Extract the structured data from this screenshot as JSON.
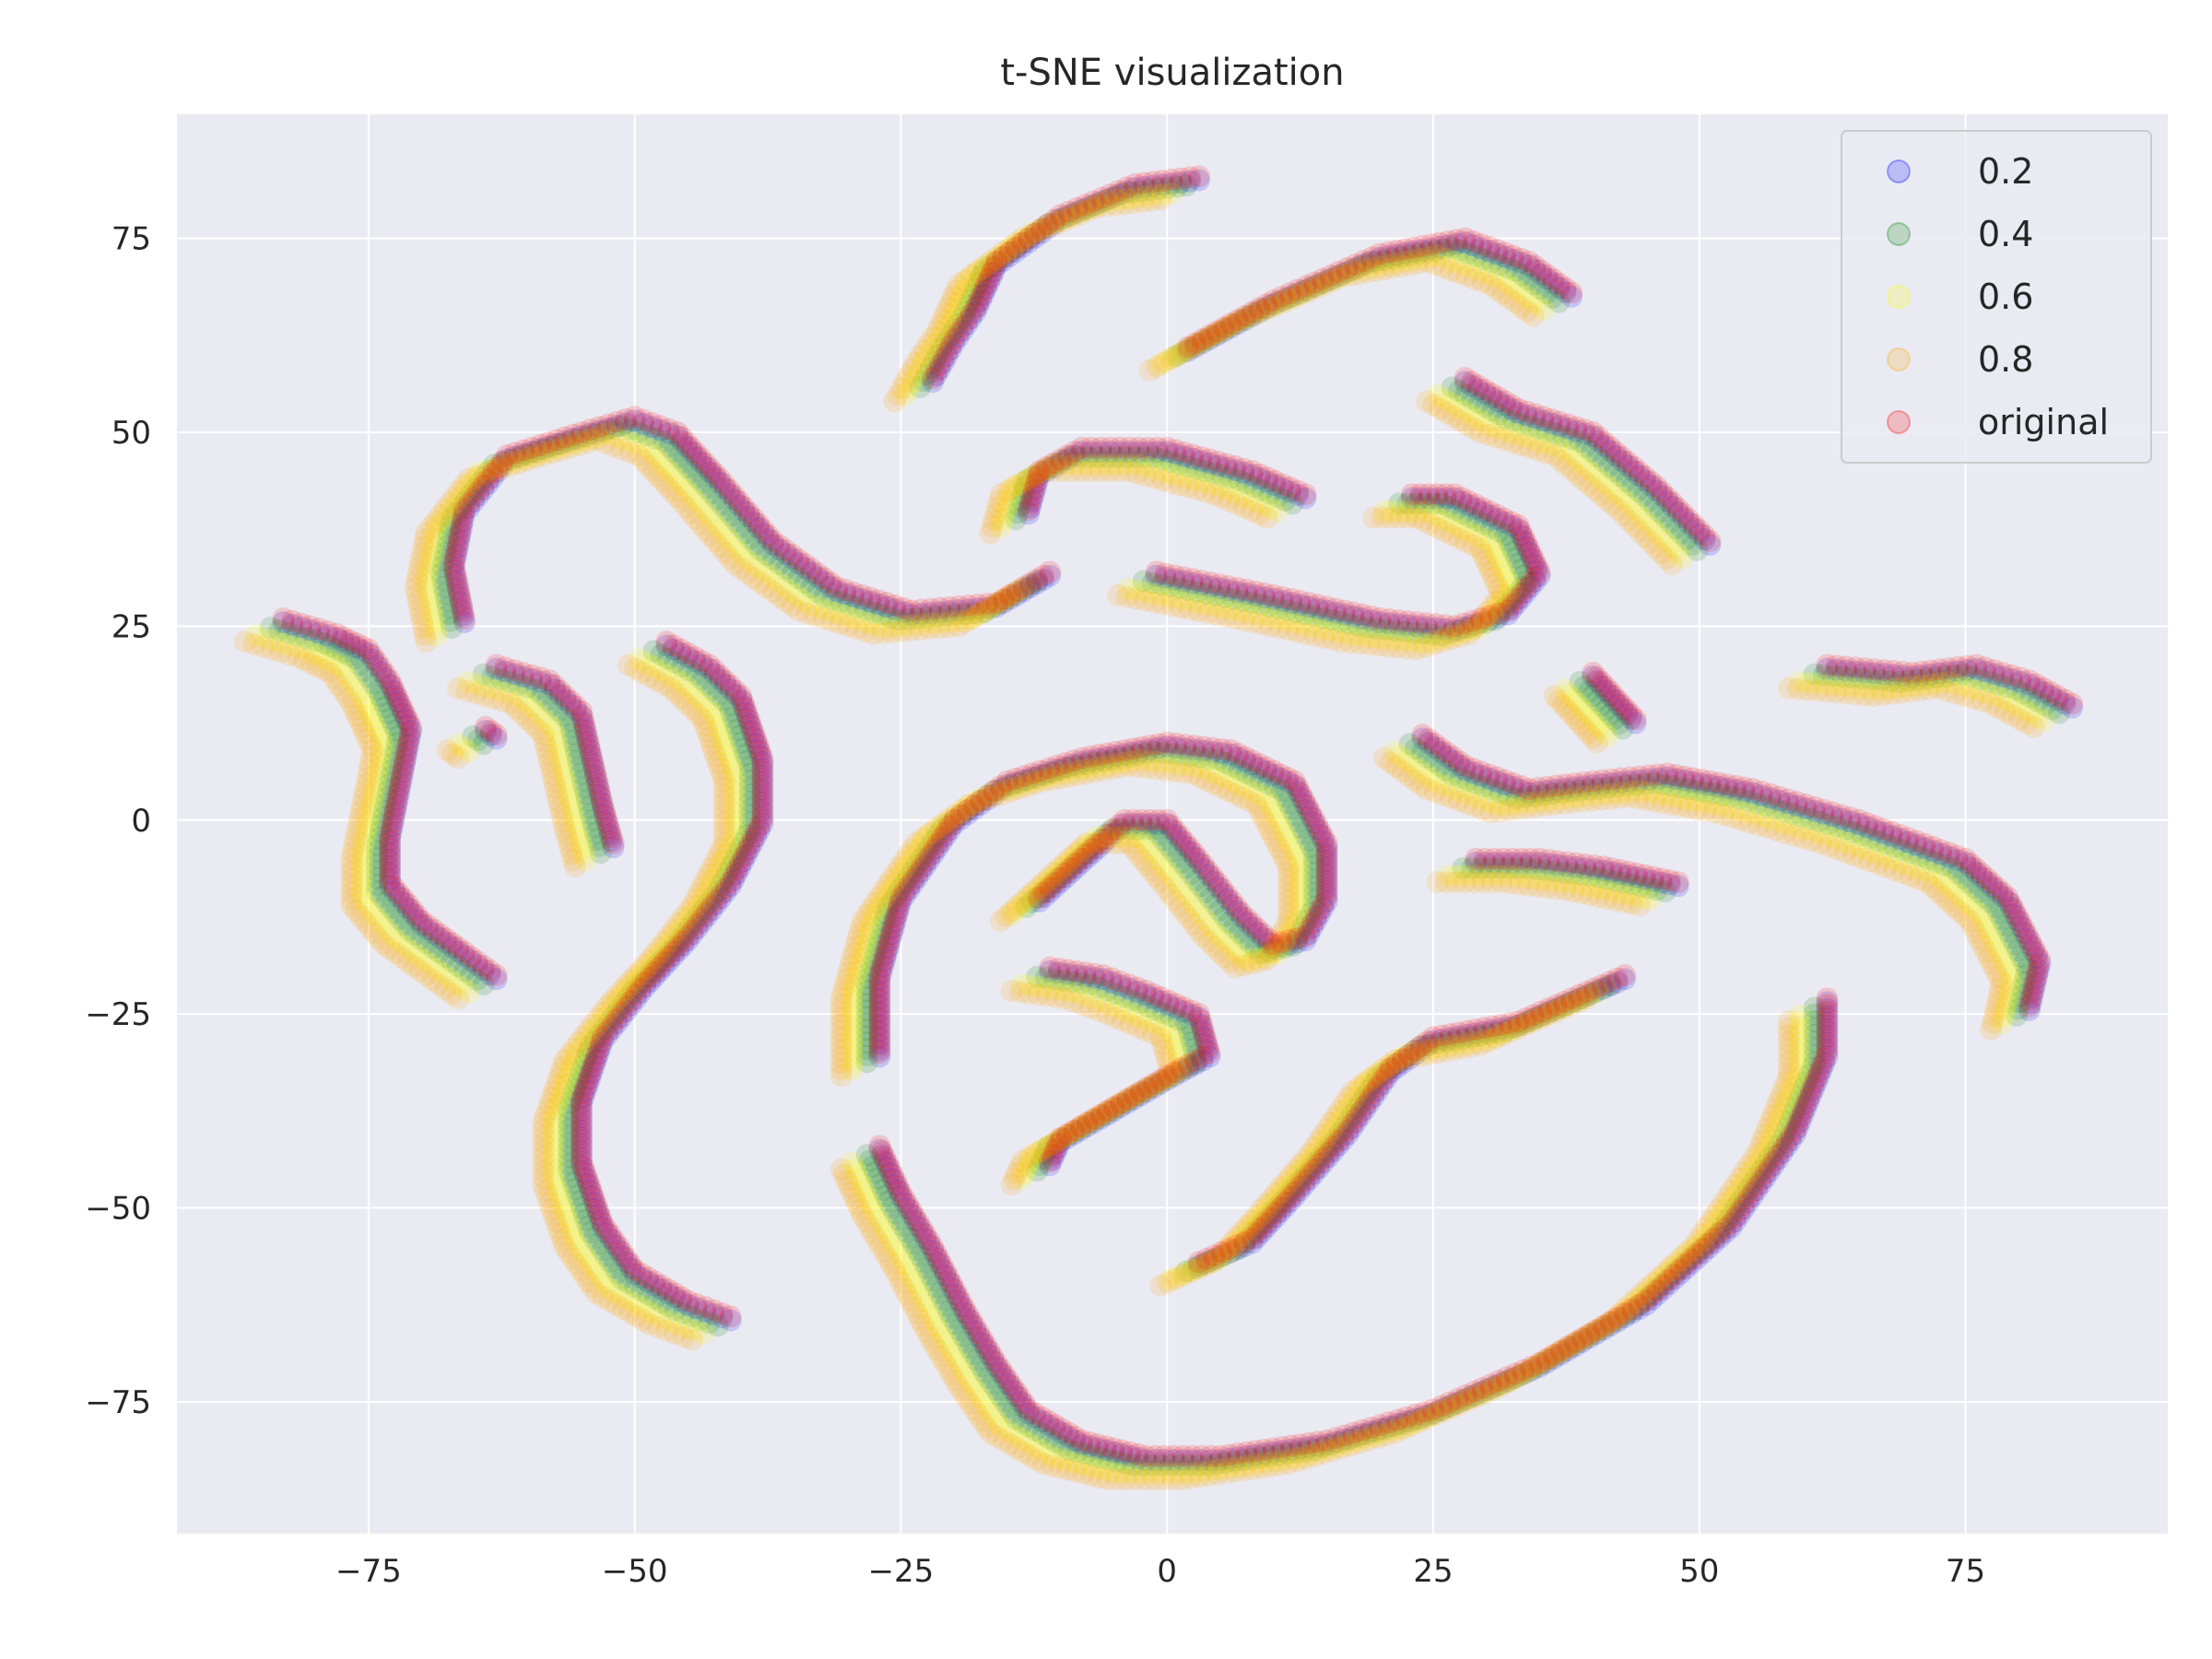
{
  "chart_data": {
    "type": "scatter",
    "title": "t-SNE visualization",
    "xlabel": "",
    "ylabel": "",
    "xlim": [
      -93,
      94
    ],
    "ylim": [
      -92,
      91
    ],
    "xticks": [
      -75,
      -50,
      -25,
      0,
      25,
      50,
      75
    ],
    "yticks": [
      -75,
      -50,
      -25,
      0,
      25,
      50,
      75
    ],
    "grid": true,
    "legend_position": "top-right",
    "background": "#eaeaf2",
    "series": [
      {
        "name": "0.2",
        "color": "#0000ff",
        "offset": [
          0,
          -0.5
        ]
      },
      {
        "name": "0.4",
        "color": "#008000",
        "offset": [
          -1.2,
          -1.2
        ]
      },
      {
        "name": "0.6",
        "color": "#ffff00",
        "offset": [
          -2.6,
          -2.2
        ]
      },
      {
        "name": "0.8",
        "color": "#ffa500",
        "offset": [
          -3.6,
          -3.0
        ]
      },
      {
        "name": "original",
        "color": "#ff0000",
        "offset": [
          0,
          0
        ]
      }
    ],
    "curves": [
      [
        [
          -83,
          26
        ],
        [
          -78,
          24
        ],
        [
          -75,
          22
        ],
        [
          -73,
          18
        ],
        [
          -71,
          12
        ],
        [
          -72,
          5
        ],
        [
          -73,
          -2
        ],
        [
          -73,
          -8
        ],
        [
          -70,
          -13
        ],
        [
          -66,
          -17
        ],
        [
          -63,
          -20
        ]
      ],
      [
        [
          -63,
          20
        ],
        [
          -58,
          18
        ],
        [
          -55,
          14
        ],
        [
          -54,
          8
        ],
        [
          -53,
          2
        ],
        [
          -52,
          -3
        ]
      ],
      [
        [
          -64,
          12
        ],
        [
          -63,
          11
        ]
      ],
      [
        [
          -47,
          23
        ],
        [
          -43,
          20
        ],
        [
          -40,
          16
        ],
        [
          -38,
          8
        ],
        [
          -38,
          0
        ],
        [
          -41,
          -8
        ],
        [
          -45,
          -15
        ],
        [
          -49,
          -21
        ],
        [
          -53,
          -28
        ],
        [
          -55,
          -36
        ],
        [
          -55,
          -44
        ],
        [
          -53,
          -52
        ],
        [
          -50,
          -58
        ],
        [
          -45,
          -62
        ],
        [
          -41,
          -64
        ]
      ],
      [
        [
          -66,
          26
        ],
        [
          -67,
          33
        ],
        [
          -66,
          40
        ],
        [
          -62,
          47
        ],
        [
          -55,
          50
        ],
        [
          -50,
          52
        ],
        [
          -46,
          50
        ],
        [
          -42,
          44
        ],
        [
          -37,
          36
        ],
        [
          -31,
          30
        ],
        [
          -24,
          27
        ],
        [
          -16,
          28
        ],
        [
          -11,
          32
        ]
      ],
      [
        [
          -22,
          57
        ],
        [
          -20,
          62
        ],
        [
          -18,
          66
        ],
        [
          -16,
          72
        ],
        [
          -10,
          78
        ],
        [
          -3,
          82
        ],
        [
          3,
          83
        ]
      ],
      [
        [
          -13,
          40
        ],
        [
          -12,
          45
        ],
        [
          -8,
          48
        ],
        [
          0,
          48
        ],
        [
          8,
          45
        ],
        [
          13,
          42
        ]
      ],
      [
        [
          2,
          61
        ],
        [
          10,
          67
        ],
        [
          20,
          73
        ],
        [
          28,
          75
        ],
        [
          34,
          72
        ],
        [
          38,
          68
        ]
      ],
      [
        [
          28,
          57
        ],
        [
          33,
          53
        ],
        [
          40,
          50
        ],
        [
          46,
          43
        ],
        [
          51,
          36
        ]
      ],
      [
        [
          -1,
          32
        ],
        [
          10,
          29
        ],
        [
          20,
          26
        ],
        [
          27,
          25
        ],
        [
          32,
          27
        ],
        [
          35,
          32
        ],
        [
          33,
          38
        ],
        [
          27,
          42
        ],
        [
          23,
          42
        ]
      ],
      [
        [
          40,
          19
        ],
        [
          42,
          16
        ],
        [
          44,
          13
        ]
      ],
      [
        [
          62,
          20
        ],
        [
          70,
          19
        ],
        [
          76,
          20
        ],
        [
          81,
          18
        ],
        [
          85,
          15
        ]
      ],
      [
        [
          24,
          11
        ],
        [
          28,
          7
        ],
        [
          34,
          4
        ],
        [
          40,
          5
        ],
        [
          47,
          6
        ],
        [
          55,
          4
        ],
        [
          65,
          0
        ],
        [
          75,
          -5
        ],
        [
          79,
          -10
        ],
        [
          82,
          -18
        ],
        [
          81,
          -24
        ]
      ],
      [
        [
          -27,
          -30
        ],
        [
          -27,
          -20
        ],
        [
          -25,
          -10
        ],
        [
          -20,
          0
        ],
        [
          -15,
          5
        ],
        [
          -8,
          8
        ],
        [
          0,
          10
        ],
        [
          6,
          9
        ],
        [
          12,
          5
        ],
        [
          15,
          -3
        ],
        [
          15,
          -10
        ],
        [
          13,
          -15
        ],
        [
          10,
          -16
        ],
        [
          7,
          -12
        ],
        [
          3,
          -5
        ],
        [
          0,
          0
        ],
        [
          -4,
          0
        ],
        [
          -8,
          -5
        ],
        [
          -12,
          -10
        ]
      ],
      [
        [
          -11,
          -19
        ],
        [
          -6,
          -20
        ],
        [
          -2,
          -22
        ],
        [
          3,
          -25
        ],
        [
          4,
          -30
        ],
        [
          0,
          -33
        ],
        [
          -5,
          -37
        ],
        [
          -10,
          -41
        ],
        [
          -11,
          -44
        ]
      ],
      [
        [
          29,
          -5
        ],
        [
          35,
          -5
        ],
        [
          41,
          -6
        ],
        [
          48,
          -8
        ]
      ],
      [
        [
          3,
          -57
        ],
        [
          8,
          -54
        ],
        [
          12,
          -48
        ],
        [
          17,
          -40
        ],
        [
          21,
          -32
        ],
        [
          25,
          -28
        ],
        [
          33,
          -26
        ],
        [
          38,
          -23
        ],
        [
          43,
          -20
        ]
      ],
      [
        [
          -27,
          -42
        ],
        [
          -25,
          -48
        ],
        [
          -22,
          -55
        ],
        [
          -19,
          -63
        ],
        [
          -16,
          -70
        ],
        [
          -13,
          -76
        ],
        [
          -8,
          -80
        ],
        [
          -2,
          -82
        ],
        [
          5,
          -82
        ],
        [
          15,
          -80
        ],
        [
          25,
          -76
        ],
        [
          35,
          -70
        ],
        [
          45,
          -62
        ],
        [
          53,
          -52
        ],
        [
          59,
          -40
        ],
        [
          62,
          -30
        ],
        [
          62,
          -23
        ]
      ]
    ]
  }
}
